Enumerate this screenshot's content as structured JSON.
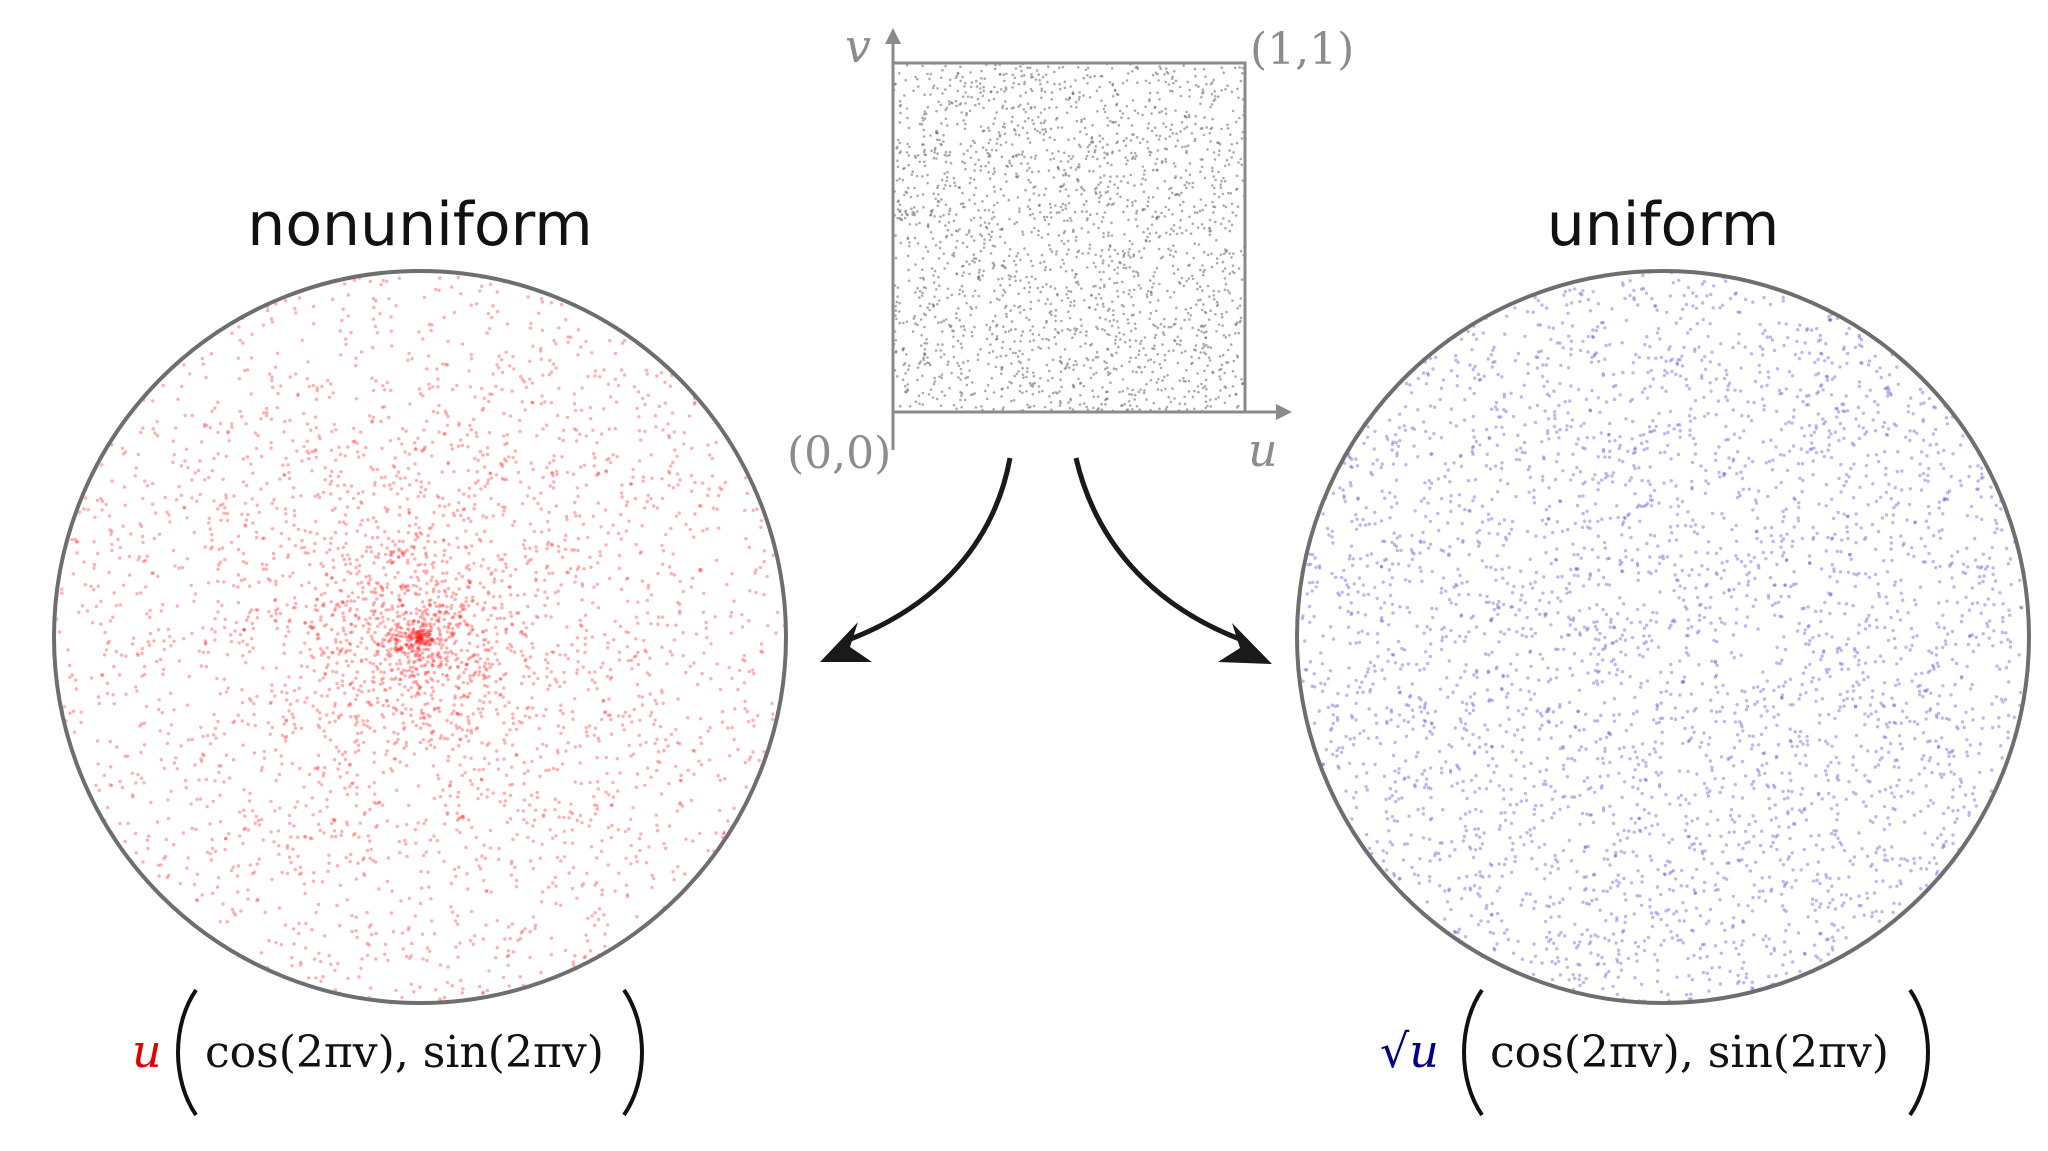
{
  "square": {
    "axis_x_label": "u",
    "axis_y_label": "v",
    "corner_origin": "(0,0)",
    "corner_top_right": "(1,1)"
  },
  "left_panel": {
    "title": "nonuniform",
    "formula_prefix": "u",
    "formula_body": "cos(2πv), sin(2πv)",
    "dot_color": "#ff2020"
  },
  "right_panel": {
    "title": "uniform",
    "formula_prefix": "√u",
    "formula_body": "cos(2πv), sin(2πv)",
    "dot_color": "#3a3ad0"
  },
  "colors": {
    "frame": "#7a7a7a",
    "label_gray": "#8c8c8c",
    "arrow": "#1a1a1a",
    "square_dots": "#666666",
    "left_prefix": "#e00000",
    "right_prefix": "#00008b"
  }
}
